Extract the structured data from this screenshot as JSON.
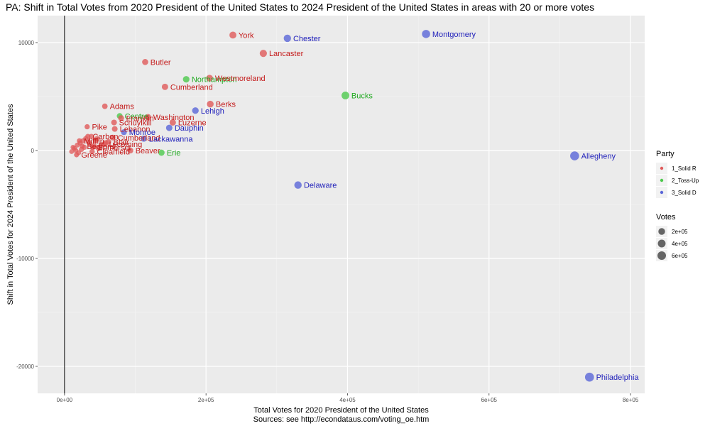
{
  "chart_data": {
    "type": "scatter",
    "title": "PA: Shift in Total Votes from 2020 President of the United States to 2024 President of the United States in areas with 20 or more votes",
    "xlabel": "Total Votes for 2020 President of the United States",
    "caption": "Sources: see http://econdataus.com/voting_oe.htm",
    "ylabel": "Shift in Total Votes for 2024 President of the United States",
    "xlim": [
      -38000,
      820000
    ],
    "ylim": [
      -22500,
      12500
    ],
    "x_ticks": [
      {
        "value": 0,
        "label": "0e+00"
      },
      {
        "value": 200000,
        "label": "2e+05"
      },
      {
        "value": 400000,
        "label": "4e+05"
      },
      {
        "value": 600000,
        "label": "6e+05"
      },
      {
        "value": 800000,
        "label": "8e+05"
      }
    ],
    "y_ticks": [
      {
        "value": 10000,
        "label": "10000"
      },
      {
        "value": 0,
        "label": "0"
      },
      {
        "value": -10000,
        "label": "-10000"
      },
      {
        "value": -20000,
        "label": "-20000"
      }
    ],
    "grid": true,
    "legend_position": "right",
    "colors": {
      "1_Solid R": "#e05a5a",
      "2_Toss-Up": "#4cc94c",
      "3_Solid D": "#5a66d8"
    },
    "label_colors": {
      "1_Solid R": "#c41a1a",
      "2_Toss-Up": "#22aa22",
      "3_Solid D": "#2222bb"
    },
    "legend": {
      "party_title": "Party",
      "party": [
        "1_Solid R",
        "2_Toss-Up",
        "3_Solid D"
      ],
      "votes_title": "Votes",
      "votes": [
        {
          "label": "2e+05",
          "value": 200000
        },
        {
          "label": "4e+05",
          "value": 400000
        },
        {
          "label": "6e+05",
          "value": 600000
        }
      ]
    },
    "points": [
      {
        "name": "York",
        "x": 238000,
        "y": 10700,
        "party": "1_Solid R"
      },
      {
        "name": "Chester",
        "x": 315000,
        "y": 10400,
        "party": "3_Solid D"
      },
      {
        "name": "Montgomery",
        "x": 511000,
        "y": 10800,
        "party": "3_Solid D"
      },
      {
        "name": "Lancaster",
        "x": 281000,
        "y": 9000,
        "party": "1_Solid R"
      },
      {
        "name": "Butler",
        "x": 114000,
        "y": 8200,
        "party": "1_Solid R"
      },
      {
        "name": "Northampton",
        "x": 172000,
        "y": 6600,
        "party": "2_Toss-Up"
      },
      {
        "name": "Westmoreland",
        "x": 205000,
        "y": 6700,
        "party": "1_Solid R"
      },
      {
        "name": "Cumberland",
        "x": 142000,
        "y": 5900,
        "party": "1_Solid R"
      },
      {
        "name": "Bucks",
        "x": 397000,
        "y": 5100,
        "party": "2_Toss-Up"
      },
      {
        "name": "Berks",
        "x": 206000,
        "y": 4300,
        "party": "1_Solid R"
      },
      {
        "name": "Adams",
        "x": 57000,
        "y": 4100,
        "party": "1_Solid R"
      },
      {
        "name": "Lehigh",
        "x": 185000,
        "y": 3700,
        "party": "3_Solid D"
      },
      {
        "name": "Centre",
        "x": 78000,
        "y": 3200,
        "party": "2_Toss-Up"
      },
      {
        "name": "Franklin",
        "x": 80000,
        "y": 3000,
        "party": "1_Solid R"
      },
      {
        "name": "Washington",
        "x": 118000,
        "y": 3100,
        "party": "1_Solid R"
      },
      {
        "name": "Schuylkill",
        "x": 70000,
        "y": 2600,
        "party": "1_Solid R"
      },
      {
        "name": "Luzerne",
        "x": 153000,
        "y": 2600,
        "party": "1_Solid R"
      },
      {
        "name": "Pike",
        "x": 32000,
        "y": 2200,
        "party": "1_Solid R"
      },
      {
        "name": "Dauphin",
        "x": 148000,
        "y": 2100,
        "party": "3_Solid D"
      },
      {
        "name": "Lebanon",
        "x": 71000,
        "y": 2000,
        "party": "1_Solid R"
      },
      {
        "name": "Monroe",
        "x": 84000,
        "y": 1700,
        "party": "3_Solid D"
      },
      {
        "name": "Cumberland",
        "x": 68000,
        "y": 1200,
        "party": "1_Solid R"
      },
      {
        "name": "Lackawanna",
        "x": 112000,
        "y": 1100,
        "party": "3_Solid D"
      },
      {
        "name": "Carbon",
        "x": 33000,
        "y": 1300,
        "party": "1_Solid R"
      },
      {
        "name": "Blair",
        "x": 62000,
        "y": 800,
        "party": "1_Solid R"
      },
      {
        "name": "Lycoming",
        "x": 56000,
        "y": 600,
        "party": "1_Solid R"
      },
      {
        "name": "Mifflin",
        "x": 21000,
        "y": 900,
        "party": "1_Solid R"
      },
      {
        "name": "Bedford",
        "x": 25000,
        "y": 400,
        "party": "1_Solid R"
      },
      {
        "name": "Somerset",
        "x": 40000,
        "y": 300,
        "party": "1_Solid R"
      },
      {
        "name": "Beaver",
        "x": 93000,
        "y": 0,
        "party": "1_Solid R"
      },
      {
        "name": "Erie",
        "x": 137000,
        "y": -200,
        "party": "2_Toss-Up"
      },
      {
        "name": "Greene",
        "x": 17000,
        "y": -400,
        "party": "1_Solid R"
      },
      {
        "name": "Clearfield",
        "x": 39000,
        "y": -100,
        "party": "1_Solid R"
      },
      {
        "name": "Allegheny",
        "x": 721000,
        "y": -500,
        "party": "3_Solid D"
      },
      {
        "name": "Delaware",
        "x": 330000,
        "y": -3200,
        "party": "3_Solid D"
      },
      {
        "name": "Philadelphia",
        "x": 742000,
        "y": -21000,
        "party": "3_Solid D"
      }
    ],
    "extra_points": [
      {
        "x": 10000,
        "y": -100
      },
      {
        "x": 14000,
        "y": 200
      },
      {
        "x": 18000,
        "y": 500
      },
      {
        "x": 22000,
        "y": 700
      },
      {
        "x": 26000,
        "y": 900
      },
      {
        "x": 30000,
        "y": 1100
      },
      {
        "x": 28000,
        "y": 300
      },
      {
        "x": 36000,
        "y": 600
      },
      {
        "x": 44000,
        "y": 900
      },
      {
        "x": 48000,
        "y": 200
      },
      {
        "x": 52000,
        "y": 500
      },
      {
        "x": 20000,
        "y": -200
      },
      {
        "x": 24000,
        "y": 100
      },
      {
        "x": 34000,
        "y": 800
      },
      {
        "x": 42000,
        "y": 400
      },
      {
        "x": 46000,
        "y": 1100
      },
      {
        "x": 58000,
        "y": 700
      },
      {
        "x": 16000,
        "y": 0
      },
      {
        "x": 12000,
        "y": 300
      },
      {
        "x": 38000,
        "y": 1300
      }
    ]
  }
}
